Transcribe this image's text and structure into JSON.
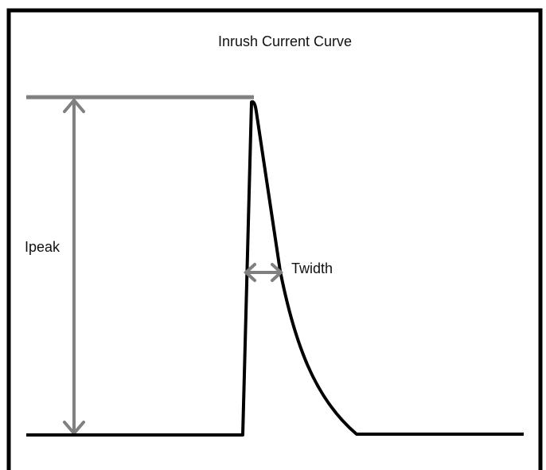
{
  "title": "Inrush Current Curve",
  "labels": {
    "peak": "Ipeak",
    "width": "Twidth"
  }
}
